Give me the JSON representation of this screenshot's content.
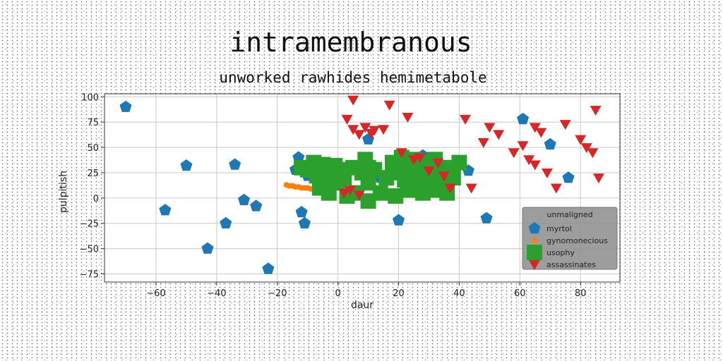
{
  "chart_data": {
    "type": "scatter",
    "title": "intramembranous",
    "subtitle": "unworked rawhides hemimetabole",
    "xlabel": "daur",
    "ylabel": "pulpitish",
    "xlim": [
      -77,
      93
    ],
    "ylim": [
      -83,
      103
    ],
    "x_ticks": [
      -60,
      -40,
      -20,
      0,
      20,
      40,
      60,
      80
    ],
    "y_ticks": [
      -75,
      -50,
      -25,
      0,
      25,
      50,
      75,
      100
    ],
    "x_tick_labels": [
      "−60",
      "−40",
      "−20",
      "0",
      "20",
      "40",
      "60",
      "80"
    ],
    "y_tick_labels": [
      "−75",
      "−50",
      "−25",
      "0",
      "25",
      "50",
      "75",
      "100"
    ],
    "grid": true,
    "legend": {
      "title": "unmaligned",
      "placement": "lower-right"
    },
    "series": [
      {
        "name": "myrtol",
        "color": "#1f77b4",
        "marker": "pentagon",
        "points": [
          [
            -70,
            90
          ],
          [
            -57,
            -12
          ],
          [
            -50,
            32
          ],
          [
            -43,
            -50
          ],
          [
            -37,
            -25
          ],
          [
            -34,
            33
          ],
          [
            -31,
            -2
          ],
          [
            -27,
            -8
          ],
          [
            -23,
            -70
          ],
          [
            -14,
            28
          ],
          [
            -13,
            40
          ],
          [
            -12,
            -14
          ],
          [
            -11,
            -25
          ],
          [
            -10,
            22
          ],
          [
            -8,
            25
          ],
          [
            -5,
            20
          ],
          [
            10,
            58
          ],
          [
            14,
            20
          ],
          [
            20,
            -22
          ],
          [
            28,
            42
          ],
          [
            43,
            27
          ],
          [
            49,
            -20
          ],
          [
            61,
            78
          ],
          [
            70,
            53
          ],
          [
            76,
            20
          ]
        ]
      },
      {
        "name": "gynomonecious",
        "color": "#ff7f0e",
        "marker": "circle",
        "points": [
          [
            -17,
            13
          ],
          [
            -16,
            12
          ],
          [
            -15,
            12
          ],
          [
            -14,
            11
          ],
          [
            -13,
            11
          ],
          [
            -12,
            10
          ],
          [
            -11,
            10
          ],
          [
            -10,
            10
          ],
          [
            -9,
            9
          ],
          [
            -8,
            9
          ],
          [
            -7,
            9
          ],
          [
            -6,
            8
          ],
          [
            -5,
            8
          ],
          [
            -4,
            8
          ],
          [
            -3,
            7
          ],
          [
            15,
            4
          ],
          [
            16,
            3
          ],
          [
            17,
            3
          ],
          [
            18,
            2
          ]
        ]
      },
      {
        "name": "usophy",
        "color": "#2ca02c",
        "marker": "square",
        "points": [
          [
            -12,
            30
          ],
          [
            -10,
            28
          ],
          [
            -8,
            35
          ],
          [
            -7,
            22
          ],
          [
            -6,
            10
          ],
          [
            -5,
            33
          ],
          [
            -3,
            27
          ],
          [
            -3,
            5
          ],
          [
            -2,
            20
          ],
          [
            -1,
            32
          ],
          [
            0,
            15
          ],
          [
            1,
            28
          ],
          [
            2,
            20
          ],
          [
            3,
            2
          ],
          [
            5,
            30
          ],
          [
            6,
            5
          ],
          [
            8,
            25
          ],
          [
            9,
            38
          ],
          [
            10,
            15
          ],
          [
            10,
            -3
          ],
          [
            12,
            28
          ],
          [
            14,
            5
          ],
          [
            16,
            20
          ],
          [
            18,
            35
          ],
          [
            19,
            2
          ],
          [
            20,
            25
          ],
          [
            21,
            40
          ],
          [
            22,
            18
          ],
          [
            23,
            8
          ],
          [
            24,
            30
          ],
          [
            25,
            38
          ],
          [
            26,
            15
          ],
          [
            27,
            25
          ],
          [
            28,
            5
          ],
          [
            29,
            35
          ],
          [
            30,
            20
          ],
          [
            31,
            8
          ],
          [
            32,
            38
          ],
          [
            33,
            25
          ],
          [
            34,
            12
          ],
          [
            35,
            30
          ],
          [
            36,
            5
          ],
          [
            38,
            20
          ],
          [
            40,
            35
          ],
          [
            10,
            30
          ],
          [
            -4,
            18
          ]
        ]
      },
      {
        "name": "assassinates",
        "color": "#d62728",
        "marker": "triangle-down",
        "points": [
          [
            5,
            97
          ],
          [
            3,
            78
          ],
          [
            5,
            68
          ],
          [
            7,
            63
          ],
          [
            9,
            70
          ],
          [
            11,
            64
          ],
          [
            12,
            67
          ],
          [
            15,
            68
          ],
          [
            17,
            92
          ],
          [
            21,
            45
          ],
          [
            23,
            80
          ],
          [
            25,
            38
          ],
          [
            27,
            40
          ],
          [
            30,
            27
          ],
          [
            33,
            35
          ],
          [
            35,
            22
          ],
          [
            37,
            10
          ],
          [
            2,
            5
          ],
          [
            4,
            8
          ],
          [
            7,
            3
          ],
          [
            42,
            78
          ],
          [
            44,
            10
          ],
          [
            48,
            55
          ],
          [
            50,
            70
          ],
          [
            53,
            63
          ],
          [
            58,
            45
          ],
          [
            61,
            52
          ],
          [
            63,
            38
          ],
          [
            65,
            33
          ],
          [
            65,
            70
          ],
          [
            67,
            65
          ],
          [
            69,
            25
          ],
          [
            72,
            10
          ],
          [
            75,
            73
          ],
          [
            80,
            58
          ],
          [
            82,
            50
          ],
          [
            84,
            45
          ],
          [
            85,
            87
          ],
          [
            86,
            20
          ]
        ]
      }
    ]
  }
}
